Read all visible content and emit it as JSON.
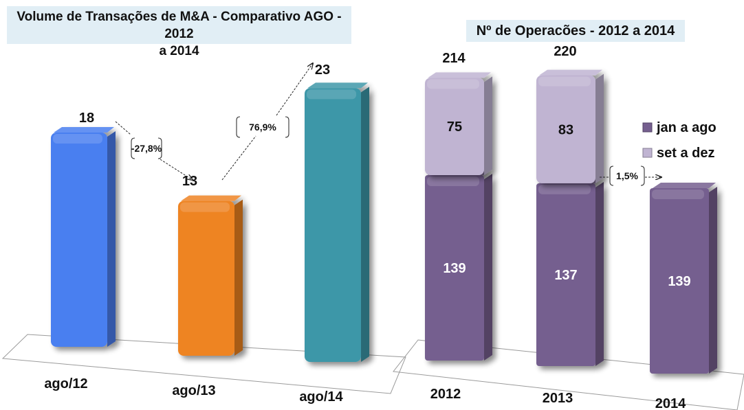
{
  "chart_data": [
    {
      "type": "bar",
      "title": "Volume de Transações de M&A - Comparativo AGO - 2012 a 2014",
      "title_line1": "Volume de Transações de M&A - Comparativo AGO - 2012",
      "title_line2": "a 2014",
      "categories": [
        "ago/12",
        "ago/13",
        "ago/14"
      ],
      "values": [
        18,
        13,
        23
      ],
      "value_labels": [
        "18",
        "13",
        "23"
      ],
      "colors": [
        "#4a7ff0",
        "#ee8424",
        "#3e97a8"
      ],
      "annotations": [
        {
          "from": "ago/12",
          "to": "ago/13",
          "label": "-27,8%"
        },
        {
          "from": "ago/13",
          "to": "ago/14",
          "label": "76,9%"
        }
      ],
      "xlabel": "",
      "ylabel": "",
      "ylim": [
        0,
        25
      ],
      "grid": false,
      "legend": "none"
    },
    {
      "type": "bar",
      "stacked": true,
      "title": "Nº de Operacões  - 2012 a 2014",
      "categories": [
        "2012",
        "2013",
        "2014"
      ],
      "series": [
        {
          "name": "jan a ago",
          "values": [
            139,
            137,
            139
          ],
          "color": "#755f8f"
        },
        {
          "name": "set a dez",
          "values": [
            75,
            83,
            null
          ],
          "color": "#c0b4d2"
        }
      ],
      "totals": [
        214,
        220,
        null
      ],
      "total_labels": [
        "214",
        "220",
        ""
      ],
      "segment_labels": {
        "jan a ago": [
          "139",
          "137",
          "139"
        ],
        "set a dez": [
          "75",
          "83",
          ""
        ]
      },
      "annotations": [
        {
          "from": "2013",
          "to": "2014",
          "label": "1,5%"
        }
      ],
      "legend_items": [
        "jan a ago",
        "set a dez"
      ],
      "xlabel": "",
      "ylabel": "",
      "ylim": [
        0,
        230
      ],
      "grid": false,
      "legend": "right"
    }
  ]
}
